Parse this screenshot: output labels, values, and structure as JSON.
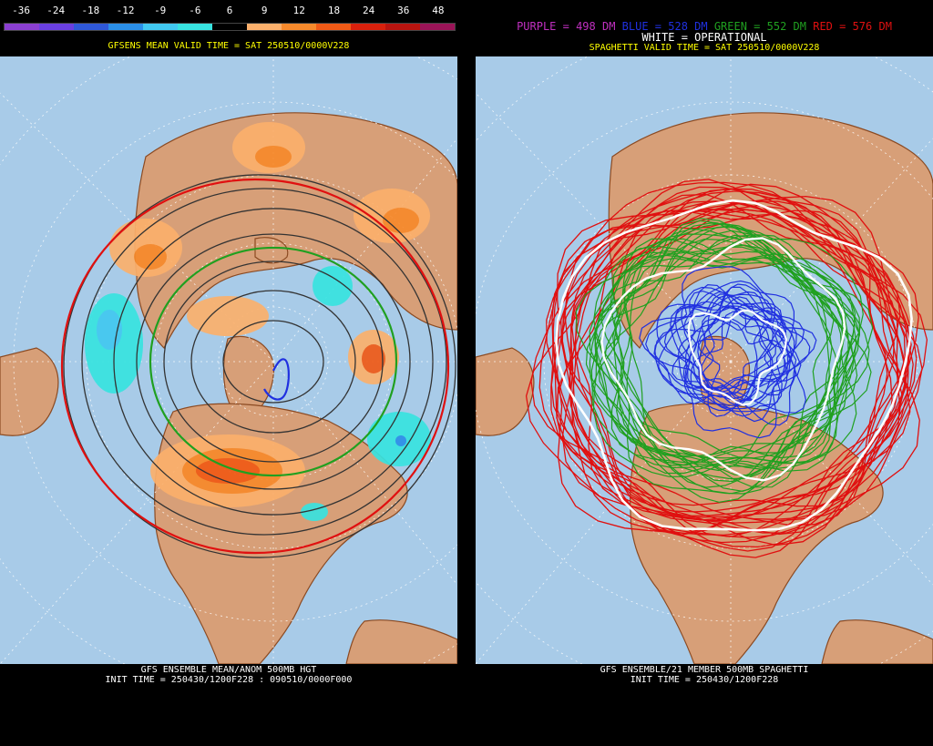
{
  "left": {
    "scale_ticks": [
      "-36",
      "-24",
      "-18",
      "-12",
      "-9",
      "-6",
      "6",
      "9",
      "12",
      "18",
      "24",
      "36",
      "48"
    ],
    "scale_colors": [
      "#8b3fd1",
      "#6a3fe0",
      "#2f58d8",
      "#2b8fe8",
      "#41c8f0",
      "#38e3e0",
      "#000000",
      "#fbb06c",
      "#f78a2c",
      "#f05a16",
      "#d8200c",
      "#b8140f",
      "#9a1458"
    ],
    "valid_time": "GFSENS MEAN VALID TIME = SAT 250510/0000V228",
    "footer_line1": "GFS ENSEMBLE MEAN/ANOM 500MB HGT",
    "footer_line2": "INIT TIME = 250430/1200F228 : 090510/0000F000"
  },
  "right": {
    "legend": {
      "purple": "PURPLE = 498 DM",
      "blue": "BLUE = 528 DM",
      "green": "GREEN = 552 DM",
      "red": "RED = 576 DM"
    },
    "operational": "WHITE = OPERATIONAL",
    "valid_time": "SPAGHETTI VALID TIME = SAT 250510/0000V228",
    "footer_line1": "GFS ENSEMBLE/21 MEMBER 500MB SPAGHETTI",
    "footer_line2": "INIT TIME = 250430/1200F228"
  },
  "colors": {
    "ocean": "#a8cbe8",
    "land": "#d79f78",
    "coast": "#8b4a22",
    "grid": "#ffffff",
    "caption": "#ffff00",
    "footer": "#ffffff",
    "legend_purple": "#c030c0",
    "legend_blue": "#2030e0",
    "legend_green": "#20a020",
    "legend_red": "#e01010"
  }
}
